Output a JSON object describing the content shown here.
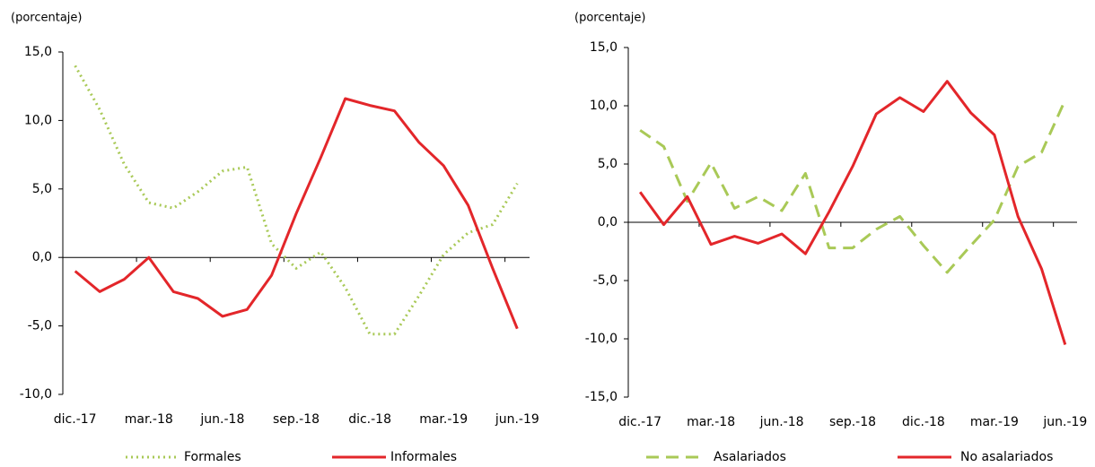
{
  "chart_data": [
    {
      "type": "line",
      "y_label": "(porcentaje)",
      "categories": [
        "dic.-17",
        null,
        null,
        "mar.-18",
        null,
        null,
        "jun.-18",
        null,
        null,
        "sep.-18",
        null,
        null,
        "dic.-18",
        null,
        null,
        "mar.-19",
        null,
        null,
        "jun.-19"
      ],
      "ylim": [
        -10,
        15
      ],
      "yticks": [
        {
          "value": -10,
          "label": "-10,0"
        },
        {
          "value": -5,
          "label": "-5,0"
        },
        {
          "value": 0,
          "label": "0,0"
        },
        {
          "value": 5,
          "label": "5,0"
        },
        {
          "value": 10,
          "label": "10,0"
        },
        {
          "value": 15,
          "label": "15,0"
        }
      ],
      "legend": "bottom",
      "series": [
        {
          "name": "Formales",
          "color": "#a9c957",
          "dash": "dotted",
          "values": [
            14.0,
            10.8,
            6.8,
            4.0,
            3.6,
            4.8,
            6.3,
            6.6,
            1.0,
            -0.8,
            0.4,
            -2.2,
            -5.6,
            -5.6,
            -2.8,
            0.2,
            1.8,
            2.4,
            5.4
          ]
        },
        {
          "name": "Informales",
          "color": "#e3262a",
          "dash": "solid",
          "values": [
            -1.0,
            -2.5,
            -1.6,
            0.0,
            -2.5,
            -3.0,
            -4.3,
            -3.8,
            -1.3,
            3.2,
            7.3,
            11.6,
            11.1,
            10.7,
            8.4,
            6.7,
            3.8,
            -0.8,
            -5.2
          ]
        }
      ]
    },
    {
      "type": "line",
      "y_label": "(porcentaje)",
      "categories": [
        "dic.-17",
        null,
        null,
        "mar.-18",
        null,
        null,
        "jun.-18",
        null,
        null,
        "sep.-18",
        null,
        null,
        "dic.-18",
        null,
        null,
        "mar.-19",
        null,
        null,
        "jun.-19"
      ],
      "ylim": [
        -15,
        15
      ],
      "yticks": [
        {
          "value": -15,
          "label": "-15,0"
        },
        {
          "value": -10,
          "label": "-10,0"
        },
        {
          "value": -5,
          "label": "-5,0"
        },
        {
          "value": 0,
          "label": "0,0"
        },
        {
          "value": 5,
          "label": "5,0"
        },
        {
          "value": 10,
          "label": "10,0"
        },
        {
          "value": 15,
          "label": "15,0"
        }
      ],
      "legend": "bottom",
      "series": [
        {
          "name": "Asalariados",
          "color": "#a9c957",
          "dash": "dashed",
          "values": [
            7.9,
            6.5,
            1.8,
            5.1,
            1.2,
            2.2,
            1.0,
            4.2,
            -2.2,
            -2.2,
            -0.6,
            0.5,
            -2.0,
            -4.3,
            -2.0,
            0.2,
            4.8,
            6.0,
            10.5
          ]
        },
        {
          "name": "No asalariados",
          "color": "#e3262a",
          "dash": "solid",
          "values": [
            2.6,
            -0.2,
            2.2,
            -1.9,
            -1.2,
            -1.8,
            -1.0,
            -2.7,
            0.9,
            4.8,
            9.3,
            10.7,
            9.5,
            12.1,
            9.4,
            7.5,
            0.5,
            -4.0,
            -10.5
          ]
        }
      ]
    }
  ]
}
